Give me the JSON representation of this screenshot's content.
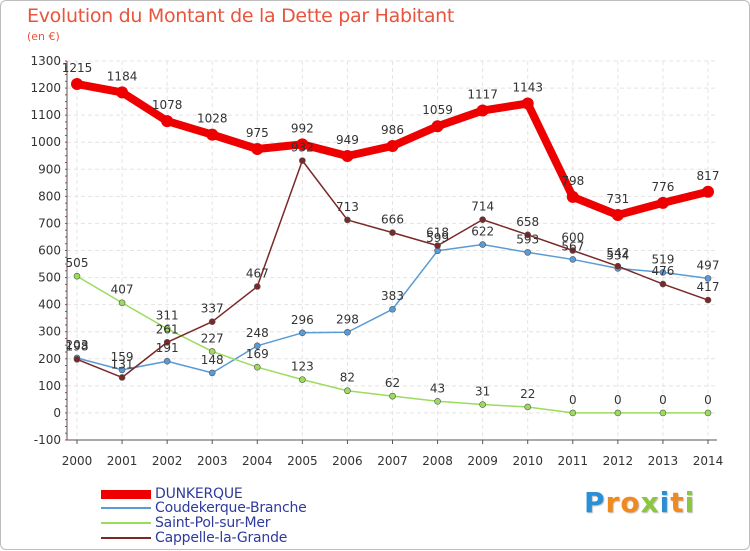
{
  "title": "Evolution du Montant de la Dette par Habitant",
  "unit": "(en €)",
  "logo": {
    "text": "Proxiti",
    "letters": [
      {
        "ch": "P",
        "color": "#2b8fd6"
      },
      {
        "ch": "r",
        "color": "#f08a1e"
      },
      {
        "ch": "o",
        "color": "#f08a1e"
      },
      {
        "ch": "x",
        "color": "#8cc63f"
      },
      {
        "ch": "i",
        "color": "#2b8fd6"
      },
      {
        "ch": "t",
        "color": "#f08a1e"
      },
      {
        "ch": "i",
        "color": "#8cc63f"
      }
    ]
  },
  "chart_data": {
    "type": "line",
    "title": "Evolution du Montant de la Dette par Habitant",
    "ylabel": "(en €)",
    "categories": [
      "2000",
      "2001",
      "2002",
      "2003",
      "2004",
      "2005",
      "2006",
      "2007",
      "2008",
      "2009",
      "2010",
      "2011",
      "2012",
      "2013",
      "2014"
    ],
    "ylim": [
      -100,
      1300
    ],
    "yticks": [
      -100,
      0,
      100,
      200,
      300,
      400,
      500,
      600,
      700,
      800,
      900,
      1000,
      1100,
      1200,
      1300
    ],
    "grid": true,
    "legend_position": "bottom-left",
    "series": [
      {
        "name": "DUNKERQUE",
        "color": "#ee0000",
        "values": [
          1215,
          1184,
          1078,
          1028,
          975,
          992,
          949,
          986,
          1059,
          1117,
          1143,
          798,
          731,
          776,
          817
        ]
      },
      {
        "name": "Coudekerque-Branche",
        "color": "#5b9bd5",
        "values": [
          203,
          159,
          191,
          148,
          248,
          296,
          298,
          383,
          599,
          622,
          593,
          567,
          534,
          519,
          497
        ]
      },
      {
        "name": "Saint-Pol-sur-Mer",
        "color": "#9bdc5c",
        "values": [
          505,
          407,
          311,
          227,
          169,
          123,
          82,
          62,
          43,
          31,
          22,
          0,
          0,
          0,
          0
        ]
      },
      {
        "name": "Cappelle-la-Grande",
        "color": "#7a2828",
        "values": [
          198,
          131,
          261,
          337,
          467,
          932,
          713,
          666,
          618,
          714,
          658,
          600,
          542,
          476,
          417
        ]
      }
    ]
  }
}
